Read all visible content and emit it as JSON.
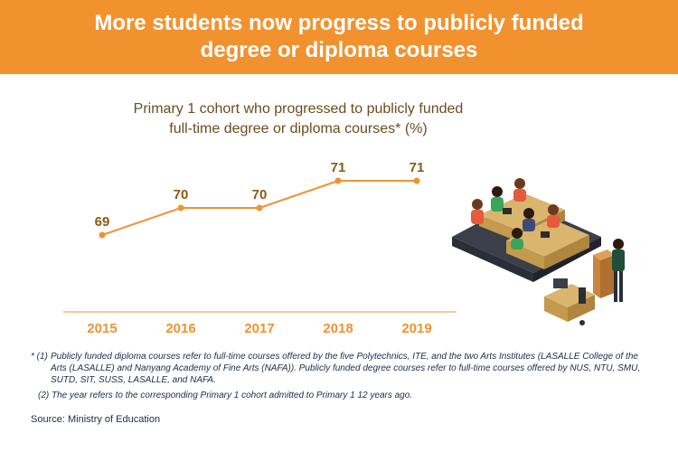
{
  "banner": {
    "line1": "More students now progress to publicly funded",
    "line2": "degree or diploma courses"
  },
  "chart_data": {
    "type": "line",
    "title_line1": "Primary 1 cohort who progressed to publicly funded",
    "title_line2": "full-time degree or diploma courses* (%)",
    "categories": [
      "2015",
      "2016",
      "2017",
      "2018",
      "2019"
    ],
    "values": [
      69,
      70,
      70,
      71,
      71
    ],
    "ylim": [
      68,
      72
    ],
    "grid": false,
    "colors": {
      "line": "#f2922f",
      "label": "#8a5a14",
      "axis": "#f2922f"
    }
  },
  "footnotes": {
    "note1_num": "* (1)",
    "note1_text": "Publicly funded diploma courses refer to full-time courses offered by the five Polytechnics, ITE, and the two Arts Institutes (LASALLE College of the Arts (LASALLE) and Nanyang Academy of Fine Arts (NAFA)). Publicly funded degree courses refer to full-time courses offered by NUS, NTU, SMU, SUTD, SIT, SUSS, LASALLE, and NAFA.",
    "note2": "(2) The year refers to the corresponding Primary 1 cohort admitted to Primary 1 12 years ago."
  },
  "source": "Source: Ministry of Education",
  "illustration": "lecture-classroom-illustration"
}
